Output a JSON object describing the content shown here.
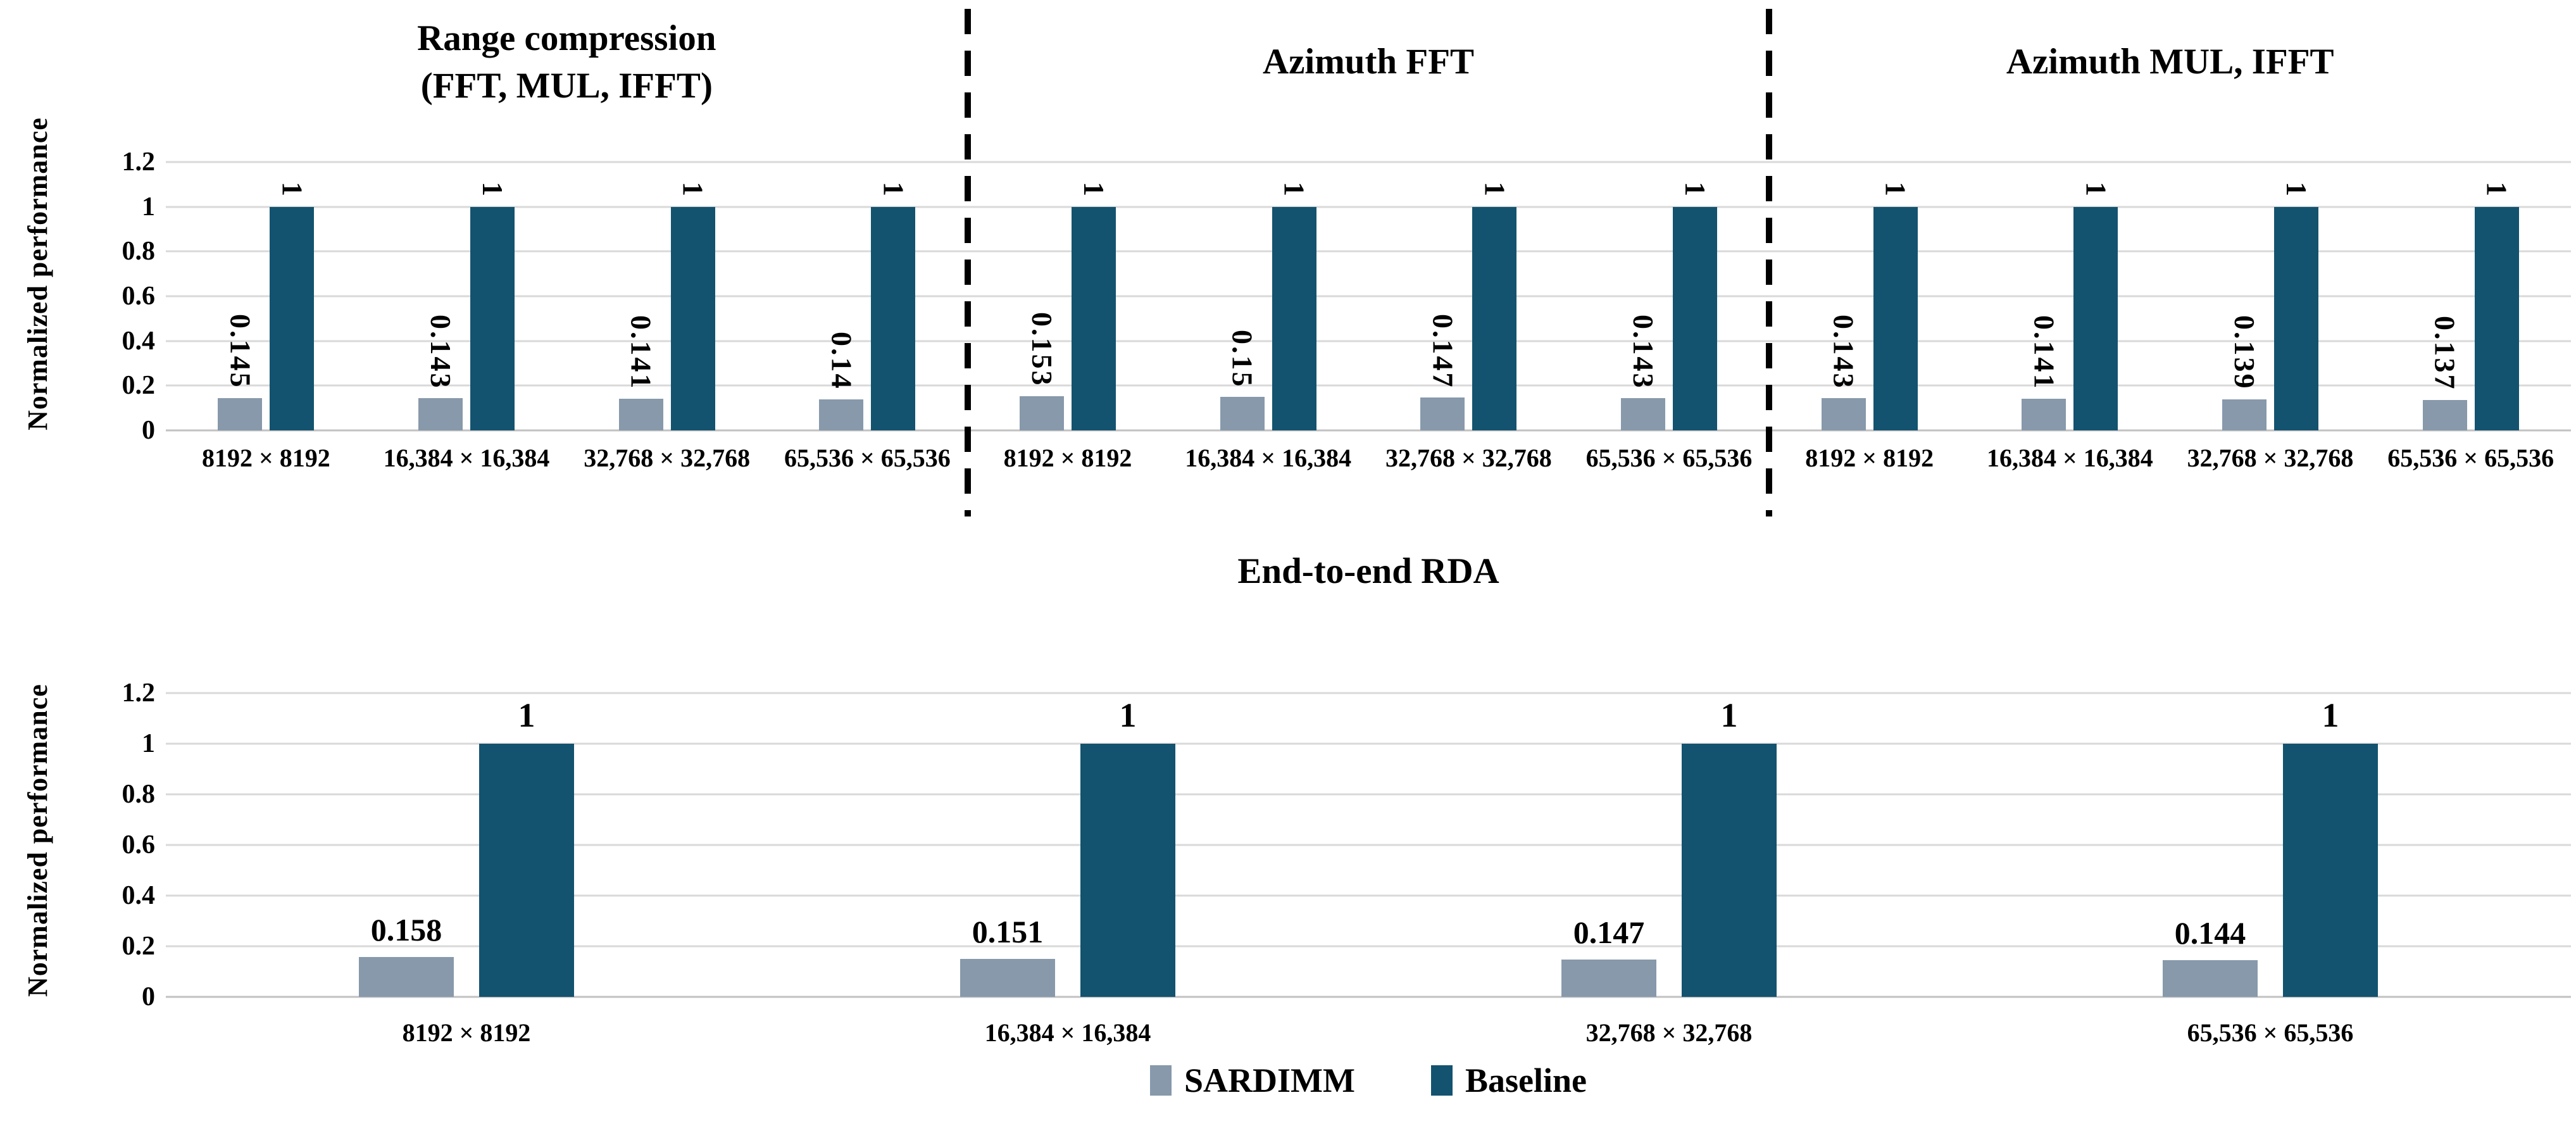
{
  "colors": {
    "sardimm": "#8799AB",
    "baseline": "#13536F",
    "gridline": "#D9D9D9",
    "axis_line": "#C2C2C2",
    "separator": "#000000",
    "text": "#000000",
    "background": "#FFFFFF"
  },
  "chart_data": [
    {
      "type": "bar",
      "ylabel": "Normalized performance",
      "ylim": [
        0,
        1.2
      ],
      "yticks": [
        "1.2",
        "1",
        "0.8",
        "0.6",
        "0.4",
        "0.2",
        "0"
      ],
      "grid": true,
      "legend_position": "none",
      "sections": [
        {
          "title_lines": [
            "Range compression",
            "(FFT, MUL, IFFT)"
          ],
          "categories": [
            "8192 × 8192",
            "16,384 × 16,384",
            "32,768 × 32,768",
            "65,536 × 65,536"
          ],
          "series": [
            {
              "name": "SARDIMM",
              "values": [
                0.145,
                0.143,
                0.141,
                0.14
              ],
              "labels": [
                "0.145",
                "0.143",
                "0.141",
                "0.14"
              ]
            },
            {
              "name": "Baseline",
              "values": [
                1,
                1,
                1,
                1
              ],
              "labels": [
                "1",
                "1",
                "1",
                "1"
              ]
            }
          ]
        },
        {
          "title_lines": [
            "Azimuth FFT"
          ],
          "categories": [
            "8192 × 8192",
            "16,384 × 16,384",
            "32,768 × 32,768",
            "65,536 × 65,536"
          ],
          "series": [
            {
              "name": "SARDIMM",
              "values": [
                0.153,
                0.15,
                0.147,
                0.143
              ],
              "labels": [
                "0.153",
                "0.15",
                "0.147",
                "0.143"
              ]
            },
            {
              "name": "Baseline",
              "values": [
                1,
                1,
                1,
                1
              ],
              "labels": [
                "1",
                "1",
                "1",
                "1"
              ]
            }
          ]
        },
        {
          "title_lines": [
            "Azimuth MUL, IFFT"
          ],
          "categories": [
            "8192 × 8192",
            "16,384 × 16,384",
            "32,768 × 32,768",
            "65,536 × 65,536"
          ],
          "series": [
            {
              "name": "SARDIMM",
              "values": [
                0.143,
                0.141,
                0.139,
                0.137
              ],
              "labels": [
                "0.143",
                "0.141",
                "0.139",
                "0.137"
              ]
            },
            {
              "name": "Baseline",
              "values": [
                1,
                1,
                1,
                1
              ],
              "labels": [
                "1",
                "1",
                "1",
                "1"
              ]
            }
          ]
        }
      ]
    },
    {
      "type": "bar",
      "title": "End-to-end RDA",
      "ylabel": "Normalized performance",
      "ylim": [
        0,
        1.2
      ],
      "yticks": [
        "1.2",
        "1",
        "0.8",
        "0.6",
        "0.4",
        "0.2",
        "0"
      ],
      "grid": true,
      "legend_position": "bottom-center",
      "categories": [
        "8192 × 8192",
        "16,384 × 16,384",
        "32,768 × 32,768",
        "65,536 × 65,536"
      ],
      "series": [
        {
          "name": "SARDIMM",
          "values": [
            0.158,
            0.151,
            0.147,
            0.144
          ],
          "labels": [
            "0.158",
            "0.151",
            "0.147",
            "0.144"
          ]
        },
        {
          "name": "Baseline",
          "values": [
            1,
            1,
            1,
            1
          ],
          "labels": [
            "1",
            "1",
            "1",
            "1"
          ]
        }
      ],
      "legend": [
        "SARDIMM",
        "Baseline"
      ]
    }
  ]
}
